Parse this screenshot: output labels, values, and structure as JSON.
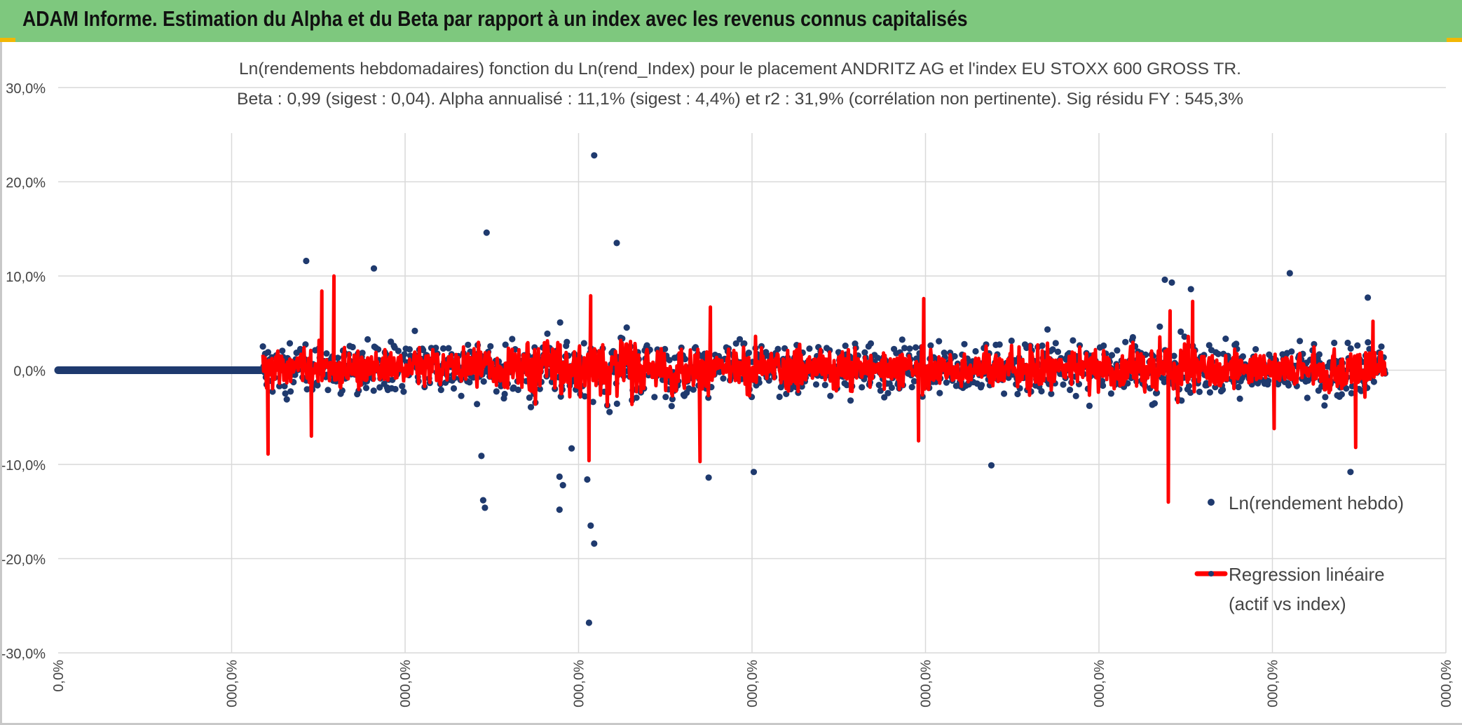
{
  "header": {
    "title": "ADAM Informe. Estimation du Alpha et du Beta par rapport à un index avec les revenus connus capitalisés"
  },
  "colors": {
    "header_bg": "#7ec87e",
    "scatter": "#1f3a6e",
    "regression": "#ff0000",
    "grid": "#d9d9d9"
  },
  "chart_data": {
    "type": "scatter",
    "title_line1": "Ln(rendements hebdomadaires) fonction du Ln(rend_Index) pour le placement ANDRITZ AG et l'index EU STOXX 600 GROSS TR.",
    "title_line2": "Beta : 0,99 (sigest : 0,04). Alpha annualisé : 11,1% (sigest : 4,4%) et r2 : 31,9% (corrélation non pertinente). Sig résidu FY : 545,3%",
    "ylim": [
      -30,
      30
    ],
    "y_ticks": [
      "30,0%",
      "20,0%",
      "10,0%",
      "0,0%",
      "-10,0%",
      "-20,0%",
      "-30,0%"
    ],
    "x_ticks": [
      "0,0%",
      "000,0%",
      "000,0%",
      "000,0%",
      "000,0%",
      "000,0%",
      "000,0%",
      "000,0%",
      "000,0%"
    ],
    "grid": true,
    "legend_position": "right",
    "series": [
      {
        "name": "Ln(rendement hebdo)",
        "kind": "scatter",
        "color": "#1f3a6e",
        "flat_run": {
          "x_start": 0,
          "x_end": 1.17,
          "y": 0
        },
        "notable_points": [
          [
            1.43,
            11.6
          ],
          [
            1.82,
            10.8
          ],
          [
            2.47,
            14.6
          ],
          [
            2.45,
            -13.8
          ],
          [
            2.46,
            -14.6
          ],
          [
            2.89,
            -14.8
          ],
          [
            2.91,
            -12.2
          ],
          [
            2.89,
            -11.3
          ],
          [
            3.05,
            -11.6
          ],
          [
            3.07,
            -16.5
          ],
          [
            3.09,
            -18.4
          ],
          [
            3.06,
            -26.8
          ],
          [
            3.09,
            22.8
          ],
          [
            3.22,
            13.5
          ],
          [
            3.75,
            -11.4
          ],
          [
            4.01,
            -10.8
          ],
          [
            5.38,
            -10.1
          ],
          [
            6.38,
            9.6
          ],
          [
            6.42,
            9.3
          ],
          [
            6.53,
            8.6
          ],
          [
            7.1,
            10.3
          ],
          [
            7.45,
            -10.8
          ],
          [
            7.55,
            7.7
          ],
          [
            2.96,
            -8.3
          ],
          [
            2.44,
            -9.1
          ]
        ]
      },
      {
        "name": "Regression linéaire (actif vs index)",
        "kind": "line",
        "color": "#ff0000",
        "notable_points": [
          [
            1.21,
            -8.9
          ],
          [
            1.59,
            10.0
          ],
          [
            1.52,
            8.4
          ],
          [
            1.46,
            -7.0
          ],
          [
            3.06,
            -9.6
          ],
          [
            3.07,
            7.9
          ],
          [
            3.7,
            -9.7
          ],
          [
            3.76,
            6.7
          ],
          [
            4.99,
            7.6
          ],
          [
            4.96,
            -7.5
          ],
          [
            6.4,
            -14.0
          ],
          [
            6.41,
            6.3
          ],
          [
            6.54,
            7.3
          ],
          [
            7.01,
            -6.2
          ],
          [
            7.48,
            -8.2
          ],
          [
            7.58,
            5.2
          ]
        ]
      }
    ]
  },
  "legend": {
    "items": [
      {
        "label": "Ln(rendement hebdo)"
      },
      {
        "label_line1": "Regression linéaire",
        "label_line2": "(actif vs index)"
      }
    ]
  }
}
